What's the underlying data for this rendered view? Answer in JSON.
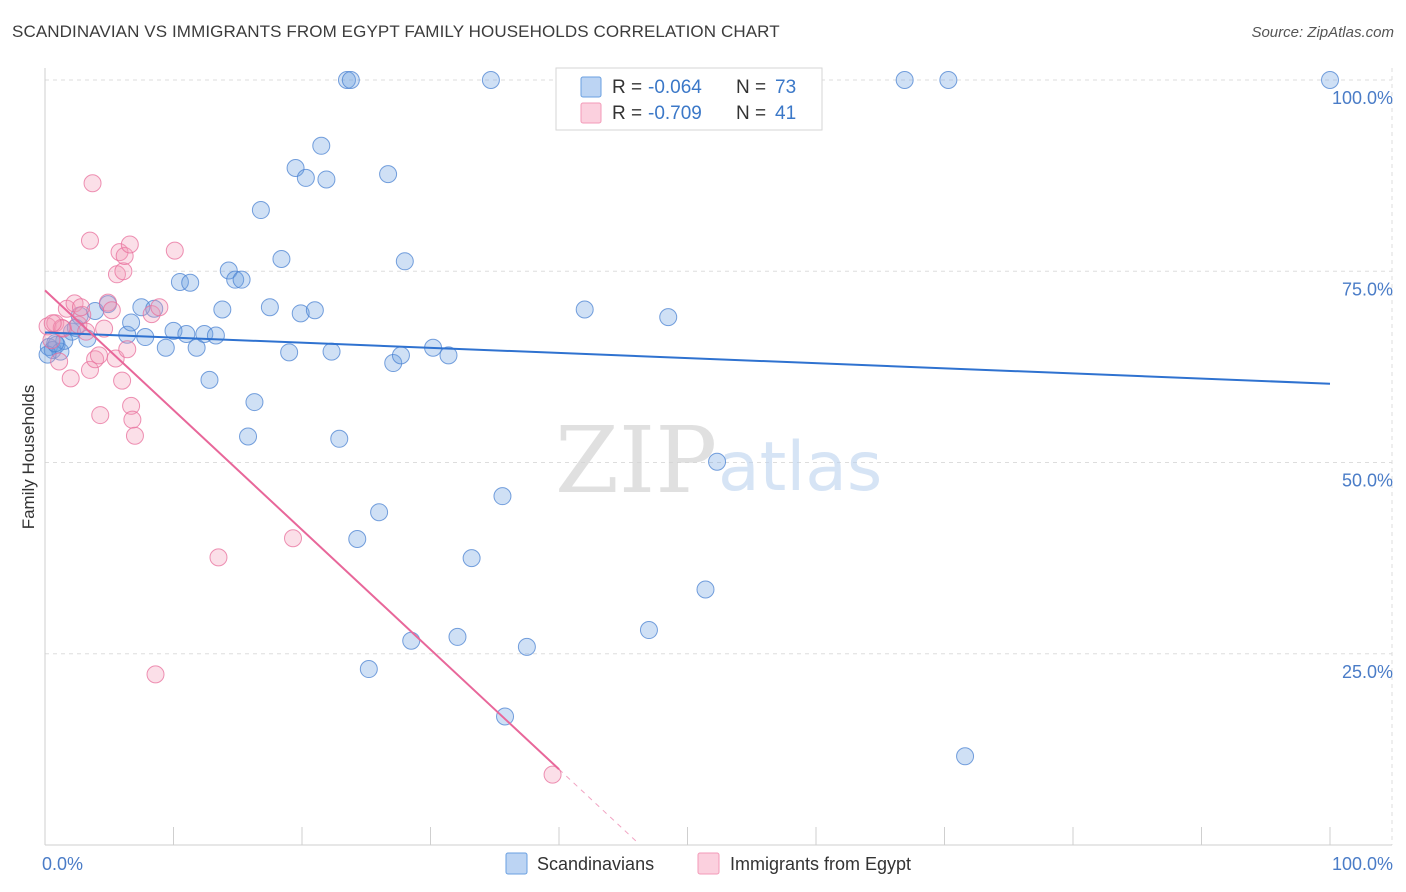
{
  "title": "SCANDINAVIAN VS IMMIGRANTS FROM EGYPT FAMILY HOUSEHOLDS CORRELATION CHART",
  "source": "Source: ZipAtlas.com",
  "watermark": {
    "zip": "ZIP",
    "atlas": "atlas"
  },
  "colors": {
    "blue": "#6a9fe0",
    "blue_line": "#2f72d0",
    "pink": "#f39ab8",
    "pink_line": "#e8679a",
    "grid": "#dddddd",
    "tick_text": "#4a7cc7"
  },
  "legend": {
    "rows": [
      {
        "r_label": "R =",
        "r_value": "-0.064",
        "n_label": "N =",
        "n_value": "73"
      },
      {
        "r_label": "R =",
        "r_value": "-0.709",
        "n_label": "N =",
        "n_value": "41"
      }
    ]
  },
  "chart_data": {
    "type": "scatter",
    "title": "SCANDINAVIAN VS IMMIGRANTS FROM EGYPT FAMILY HOUSEHOLDS CORRELATION CHART",
    "ylabel": "Family Households",
    "xlabel": "",
    "xlim": [
      0,
      100
    ],
    "ylim": [
      0,
      100
    ],
    "x_tick_labels": [
      "0.0%",
      "100.0%"
    ],
    "y_tick_labels": [
      "25.0%",
      "50.0%",
      "75.0%",
      "100.0%"
    ],
    "y_ticks": [
      25,
      50,
      75,
      100
    ],
    "grid": true,
    "series": [
      {
        "name": "Scandinavians",
        "color": "#6a9fe0",
        "trend": {
          "x0": 0,
          "y0": 67.0,
          "x1": 100,
          "y1": 60.3
        },
        "points": [
          [
            0.3,
            65.1
          ],
          [
            0.6,
            64.7
          ],
          [
            0.9,
            65.4
          ],
          [
            1.2,
            64.5
          ],
          [
            1.5,
            65.9
          ],
          [
            2.1,
            67.1
          ],
          [
            2.7,
            69.2
          ],
          [
            3.3,
            66.2
          ],
          [
            3.9,
            69.8
          ],
          [
            4.9,
            70.7
          ],
          [
            6.4,
            66.7
          ],
          [
            6.7,
            68.3
          ],
          [
            7.5,
            70.3
          ],
          [
            7.8,
            66.4
          ],
          [
            8.5,
            70.1
          ],
          [
            9.4,
            65.0
          ],
          [
            10.0,
            67.2
          ],
          [
            10.5,
            73.6
          ],
          [
            11.0,
            66.8
          ],
          [
            11.3,
            73.5
          ],
          [
            11.8,
            65.0
          ],
          [
            12.4,
            66.8
          ],
          [
            12.8,
            60.8
          ],
          [
            13.3,
            66.6
          ],
          [
            13.8,
            70.0
          ],
          [
            14.3,
            75.1
          ],
          [
            14.8,
            73.9
          ],
          [
            15.3,
            73.9
          ],
          [
            15.8,
            53.4
          ],
          [
            16.3,
            57.9
          ],
          [
            16.8,
            83.0
          ],
          [
            17.5,
            70.3
          ],
          [
            18.4,
            76.6
          ],
          [
            19.0,
            64.4
          ],
          [
            19.5,
            88.5
          ],
          [
            19.9,
            69.5
          ],
          [
            20.3,
            87.2
          ],
          [
            21.0,
            69.9
          ],
          [
            21.5,
            91.4
          ],
          [
            21.9,
            87.0
          ],
          [
            22.3,
            64.5
          ],
          [
            22.9,
            53.1
          ],
          [
            23.5,
            100.0
          ],
          [
            23.8,
            100.0
          ],
          [
            24.3,
            40.0
          ],
          [
            26.0,
            43.5
          ],
          [
            26.7,
            87.7
          ],
          [
            27.1,
            63.0
          ],
          [
            27.7,
            64.0
          ],
          [
            28.0,
            76.3
          ],
          [
            28.5,
            26.7
          ],
          [
            30.2,
            65.0
          ],
          [
            31.4,
            64.0
          ],
          [
            32.1,
            27.2
          ],
          [
            33.2,
            37.5
          ],
          [
            34.7,
            100.0
          ],
          [
            35.6,
            45.6
          ],
          [
            35.8,
            16.8
          ],
          [
            37.5,
            25.9
          ],
          [
            42.0,
            70.0
          ],
          [
            43.4,
            100.0
          ],
          [
            47.0,
            28.1
          ],
          [
            48.5,
            69.0
          ],
          [
            51.4,
            33.4
          ],
          [
            52.3,
            50.1
          ],
          [
            66.9,
            100.0
          ],
          [
            70.3,
            100.0
          ],
          [
            71.6,
            11.6
          ],
          [
            100.0,
            100.0
          ],
          [
            25.2,
            23.0
          ],
          [
            0.2,
            64.1
          ],
          [
            0.8,
            65.6
          ],
          [
            2.4,
            67.6
          ]
        ]
      },
      {
        "name": "Immigrants from Egypt",
        "color": "#f39ab8",
        "trend": {
          "x0": 0,
          "y0": 72.5,
          "x1": 40,
          "y1": 9.9,
          "dash_x1": 46,
          "dash_y1": 0.5
        },
        "points": [
          [
            0.2,
            67.8
          ],
          [
            0.5,
            66.0
          ],
          [
            0.8,
            68.2
          ],
          [
            1.1,
            63.2
          ],
          [
            1.4,
            67.5
          ],
          [
            1.7,
            70.1
          ],
          [
            2.0,
            61.0
          ],
          [
            2.3,
            70.8
          ],
          [
            2.6,
            68.0
          ],
          [
            2.9,
            69.3
          ],
          [
            3.2,
            67.1
          ],
          [
            3.5,
            79.0
          ],
          [
            3.5,
            62.1
          ],
          [
            3.7,
            86.5
          ],
          [
            3.9,
            63.5
          ],
          [
            4.2,
            64.0
          ],
          [
            4.3,
            56.2
          ],
          [
            4.6,
            67.5
          ],
          [
            4.9,
            70.9
          ],
          [
            5.2,
            69.9
          ],
          [
            5.5,
            63.6
          ],
          [
            5.6,
            74.6
          ],
          [
            5.8,
            77.5
          ],
          [
            6.0,
            60.7
          ],
          [
            6.1,
            75.0
          ],
          [
            6.2,
            77.0
          ],
          [
            6.4,
            64.8
          ],
          [
            6.6,
            78.5
          ],
          [
            6.7,
            57.4
          ],
          [
            6.8,
            55.6
          ],
          [
            7.0,
            53.5
          ],
          [
            8.3,
            69.4
          ],
          [
            8.6,
            22.3
          ],
          [
            8.9,
            70.3
          ],
          [
            10.1,
            77.7
          ],
          [
            13.5,
            37.6
          ],
          [
            19.3,
            40.1
          ],
          [
            39.5,
            9.2
          ],
          [
            1.3,
            67.6
          ],
          [
            2.8,
            70.3
          ],
          [
            0.6,
            68.2
          ]
        ]
      }
    ]
  },
  "bottom_legend": [
    {
      "label": "Scandinavians",
      "color": "#6a9fe0"
    },
    {
      "label": "Immigrants from Egypt",
      "color": "#f39ab8"
    }
  ]
}
